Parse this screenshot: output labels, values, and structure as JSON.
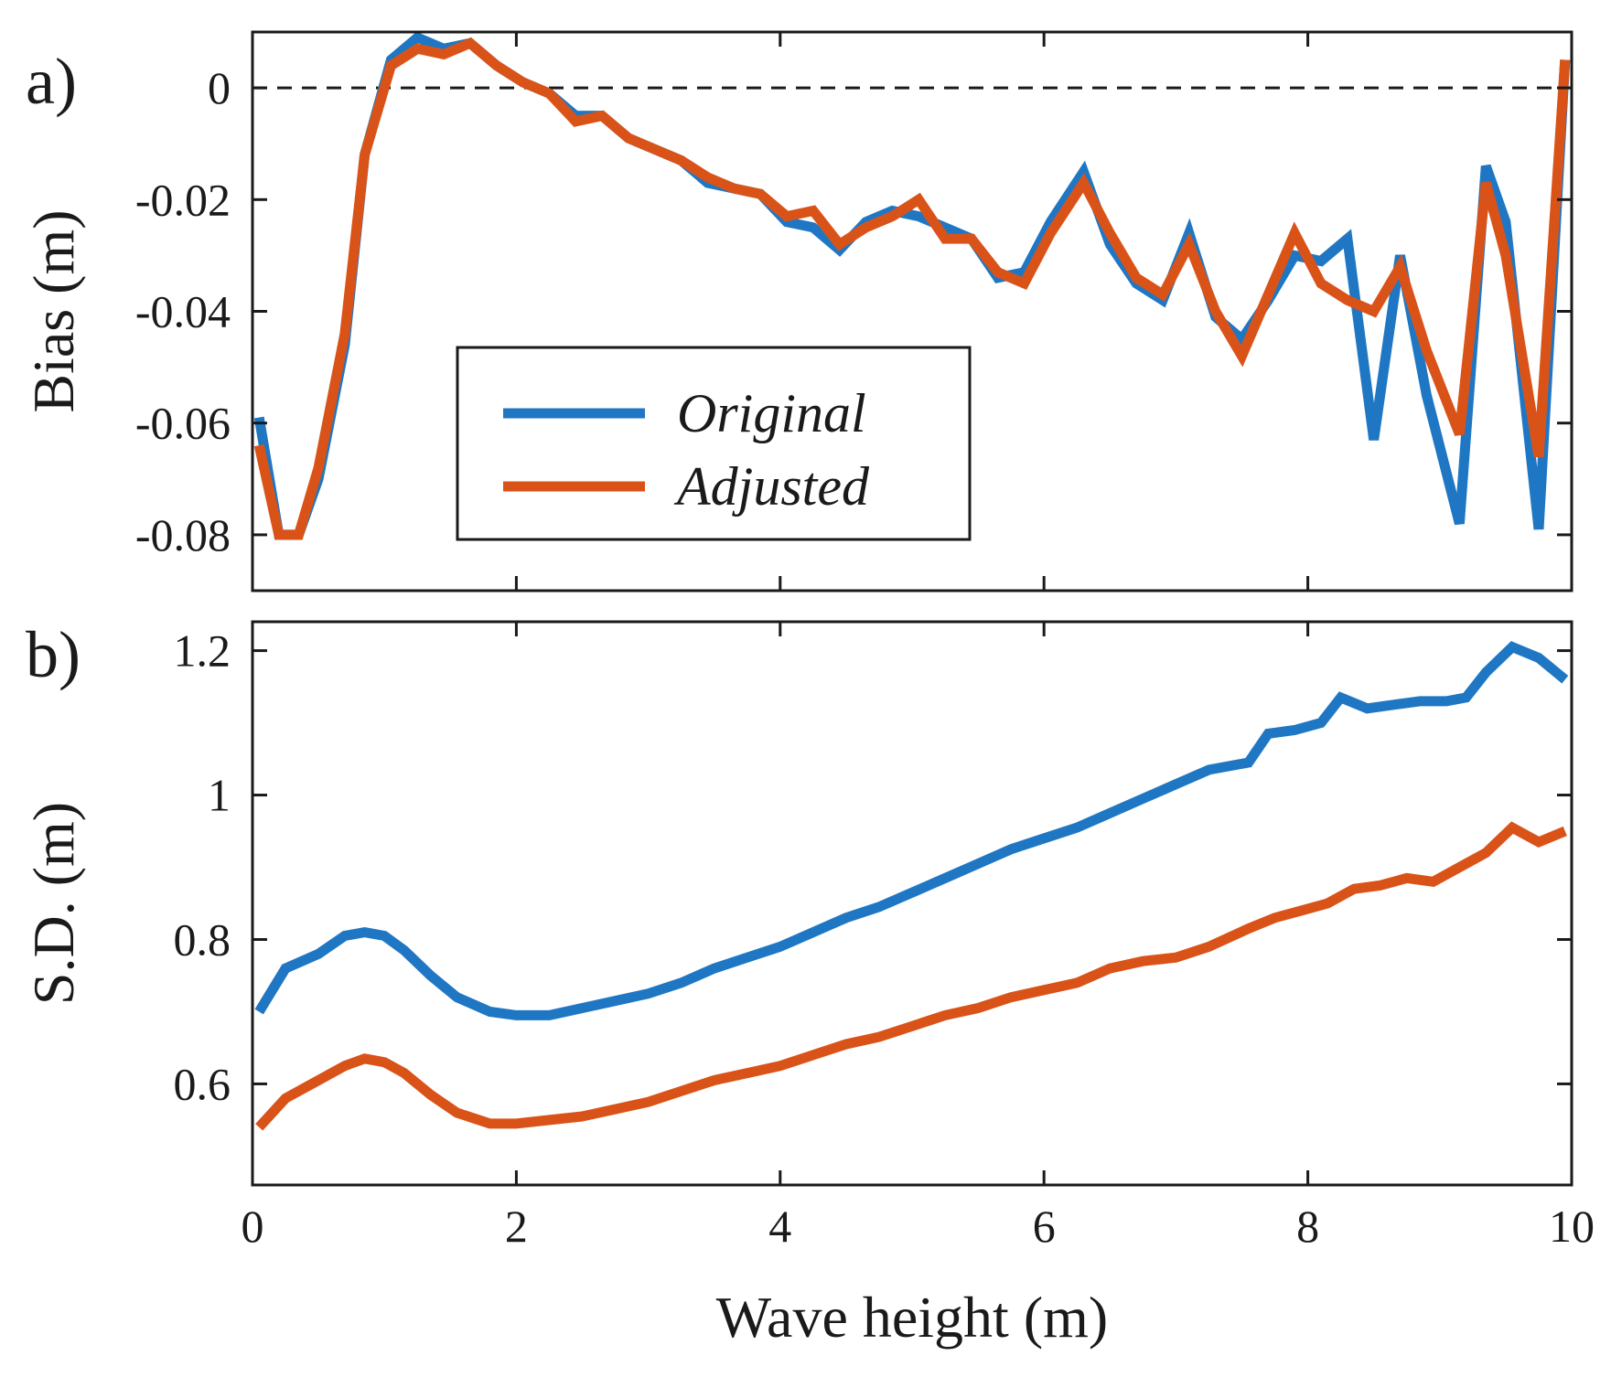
{
  "chart_data": [
    {
      "panel_label": "a)",
      "type": "line",
      "ylabel": "Bias (m)",
      "xlabel": "",
      "xlim": [
        0,
        10
      ],
      "ylim": [
        -0.09,
        0.01
      ],
      "yticks": [
        0,
        -0.02,
        -0.04,
        -0.06,
        -0.08
      ],
      "ytick_labels": [
        "0",
        "-0.02",
        "-0.04",
        "-0.06",
        "-0.08"
      ],
      "reference_line": {
        "y": 0,
        "style": "dashed"
      },
      "legend": {
        "position": "center-left",
        "entries": [
          "Original",
          "Adjusted"
        ]
      },
      "series": [
        {
          "name": "Original",
          "color": "#1f77c4",
          "x": [
            0.05,
            0.2,
            0.35,
            0.5,
            0.7,
            0.85,
            1.05,
            1.25,
            1.45,
            1.65,
            1.85,
            2.05,
            2.25,
            2.45,
            2.65,
            2.85,
            3.05,
            3.25,
            3.45,
            3.65,
            3.85,
            4.05,
            4.25,
            4.45,
            4.65,
            4.85,
            5.05,
            5.25,
            5.45,
            5.65,
            5.85,
            6.05,
            6.3,
            6.5,
            6.7,
            6.9,
            7.1,
            7.3,
            7.5,
            7.7,
            7.9,
            8.1,
            8.3,
            8.5,
            8.7,
            8.9,
            9.15,
            9.35,
            9.5,
            9.75,
            9.95
          ],
          "y": [
            -0.059,
            -0.08,
            -0.08,
            -0.07,
            -0.046,
            -0.012,
            0.005,
            0.009,
            0.007,
            0.008,
            0.004,
            0.001,
            -0.001,
            -0.005,
            -0.005,
            -0.009,
            -0.011,
            -0.013,
            -0.017,
            -0.018,
            -0.019,
            -0.024,
            -0.025,
            -0.029,
            -0.024,
            -0.022,
            -0.023,
            -0.025,
            -0.027,
            -0.034,
            -0.033,
            -0.024,
            -0.015,
            -0.028,
            -0.035,
            -0.038,
            -0.026,
            -0.041,
            -0.045,
            -0.038,
            -0.03,
            -0.031,
            -0.027,
            -0.063,
            -0.03,
            -0.055,
            -0.078,
            -0.014,
            -0.024,
            -0.079,
            0.005
          ]
        },
        {
          "name": "Adjusted",
          "color": "#d95319",
          "x": [
            0.05,
            0.2,
            0.35,
            0.5,
            0.7,
            0.85,
            1.05,
            1.25,
            1.45,
            1.65,
            1.85,
            2.05,
            2.25,
            2.45,
            2.65,
            2.85,
            3.05,
            3.25,
            3.45,
            3.65,
            3.85,
            4.05,
            4.25,
            4.45,
            4.65,
            4.85,
            5.05,
            5.25,
            5.45,
            5.65,
            5.85,
            6.05,
            6.3,
            6.5,
            6.7,
            6.9,
            7.1,
            7.3,
            7.5,
            7.7,
            7.9,
            8.1,
            8.3,
            8.5,
            8.7,
            8.9,
            9.15,
            9.35,
            9.5,
            9.75,
            9.95
          ],
          "y": [
            -0.064,
            -0.08,
            -0.08,
            -0.068,
            -0.044,
            -0.012,
            0.004,
            0.007,
            0.006,
            0.008,
            0.004,
            0.001,
            -0.001,
            -0.006,
            -0.005,
            -0.009,
            -0.011,
            -0.013,
            -0.016,
            -0.018,
            -0.019,
            -0.023,
            -0.022,
            -0.028,
            -0.025,
            -0.023,
            -0.02,
            -0.027,
            -0.027,
            -0.033,
            -0.035,
            -0.026,
            -0.017,
            -0.026,
            -0.034,
            -0.037,
            -0.028,
            -0.04,
            -0.048,
            -0.037,
            -0.026,
            -0.035,
            -0.038,
            -0.04,
            -0.032,
            -0.047,
            -0.062,
            -0.017,
            -0.03,
            -0.066,
            0.005
          ]
        }
      ]
    },
    {
      "panel_label": "b)",
      "type": "line",
      "ylabel": "S.D. (m)",
      "xlabel": "Wave height (m)",
      "xlim": [
        0,
        10
      ],
      "ylim": [
        0.46,
        1.24
      ],
      "xticks": [
        0,
        2,
        4,
        6,
        8,
        10
      ],
      "xtick_labels": [
        "0",
        "2",
        "4",
        "6",
        "8",
        "10"
      ],
      "yticks": [
        1.2,
        1,
        0.8,
        0.6
      ],
      "ytick_labels": [
        "1.2",
        "1",
        "0.8",
        "0.6"
      ],
      "series": [
        {
          "name": "Original",
          "color": "#1f77c4",
          "x": [
            0.05,
            0.25,
            0.5,
            0.7,
            0.85,
            1.0,
            1.15,
            1.35,
            1.55,
            1.8,
            2.0,
            2.25,
            2.5,
            2.75,
            3.0,
            3.25,
            3.5,
            3.75,
            4.0,
            4.25,
            4.5,
            4.75,
            5.0,
            5.25,
            5.5,
            5.75,
            6.0,
            6.25,
            6.5,
            6.75,
            7.0,
            7.25,
            7.55,
            7.7,
            7.9,
            8.1,
            8.25,
            8.45,
            8.65,
            8.85,
            9.05,
            9.2,
            9.35,
            9.55,
            9.75,
            9.95
          ],
          "y": [
            0.7,
            0.76,
            0.78,
            0.805,
            0.81,
            0.805,
            0.785,
            0.75,
            0.72,
            0.7,
            0.695,
            0.695,
            0.705,
            0.715,
            0.725,
            0.74,
            0.76,
            0.775,
            0.79,
            0.81,
            0.83,
            0.845,
            0.865,
            0.885,
            0.905,
            0.925,
            0.94,
            0.955,
            0.975,
            0.995,
            1.015,
            1.035,
            1.045,
            1.085,
            1.09,
            1.1,
            1.135,
            1.12,
            1.125,
            1.13,
            1.13,
            1.135,
            1.17,
            1.205,
            1.19,
            1.16
          ]
        },
        {
          "name": "Adjusted",
          "color": "#d95319",
          "x": [
            0.05,
            0.25,
            0.5,
            0.7,
            0.85,
            1.0,
            1.15,
            1.35,
            1.55,
            1.8,
            2.0,
            2.25,
            2.5,
            2.75,
            3.0,
            3.25,
            3.5,
            3.75,
            4.0,
            4.25,
            4.5,
            4.75,
            5.0,
            5.25,
            5.5,
            5.75,
            6.0,
            6.25,
            6.5,
            6.75,
            7.0,
            7.25,
            7.55,
            7.75,
            7.95,
            8.15,
            8.35,
            8.55,
            8.75,
            8.95,
            9.15,
            9.35,
            9.55,
            9.75,
            9.95
          ],
          "y": [
            0.54,
            0.58,
            0.605,
            0.625,
            0.635,
            0.63,
            0.615,
            0.585,
            0.56,
            0.545,
            0.545,
            0.55,
            0.555,
            0.565,
            0.575,
            0.59,
            0.605,
            0.615,
            0.625,
            0.64,
            0.655,
            0.665,
            0.68,
            0.695,
            0.705,
            0.72,
            0.73,
            0.74,
            0.76,
            0.77,
            0.775,
            0.79,
            0.815,
            0.83,
            0.84,
            0.85,
            0.87,
            0.875,
            0.885,
            0.88,
            0.9,
            0.92,
            0.955,
            0.935,
            0.95
          ]
        }
      ]
    }
  ]
}
